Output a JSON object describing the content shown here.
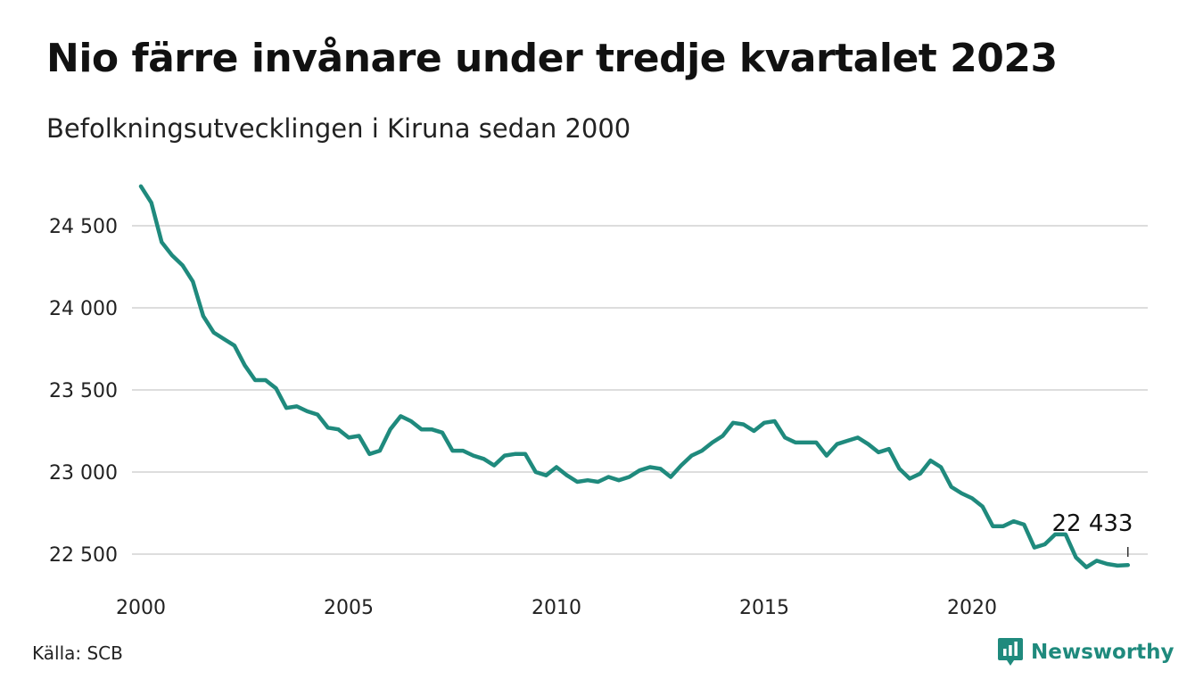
{
  "header": {
    "title": "Nio färre invånare under tredje kvartalet 2023",
    "subtitle": "Befolkningsutvecklingen i Kiruna sedan 2000"
  },
  "footer": {
    "source": "Källa: SCB",
    "brand": "Newsworthy"
  },
  "colors": {
    "line": "#1f8a7d",
    "grid": "#dddddd",
    "brand": "#1f8a7d"
  },
  "icons": {
    "brand_logo": "chart-bubble-icon"
  },
  "chart_data": {
    "type": "line",
    "title": "Nio färre invånare under tredje kvartalet 2023",
    "subtitle": "Befolkningsutvecklingen i Kiruna sedan 2000",
    "xlabel": "",
    "ylabel": "",
    "xlim": [
      2000,
      2024.5
    ],
    "ylim": [
      22400,
      24800
    ],
    "x_ticks": [
      2000,
      2005,
      2010,
      2015,
      2020
    ],
    "x_tick_labels": [
      "2000",
      "2005",
      "2010",
      "2015",
      "2020"
    ],
    "y_ticks": [
      22500,
      23000,
      23500,
      24000,
      24500
    ],
    "y_tick_labels": [
      "22 500",
      "23 000",
      "23 500",
      "24 000",
      "24 500"
    ],
    "grid": true,
    "annotation": {
      "label": "22 433",
      "x": 2023.75,
      "y": 22433
    },
    "series": [
      {
        "x": [
          2000.0,
          2000.25,
          2000.5,
          2000.75,
          2001.0,
          2001.25,
          2001.5,
          2001.75,
          2002.0,
          2002.25,
          2002.5,
          2002.75,
          2003.0,
          2003.25,
          2003.5,
          2003.75,
          2004.0,
          2004.25,
          2004.5,
          2004.75,
          2005.0,
          2005.25,
          2005.5,
          2005.75,
          2006.0,
          2006.25,
          2006.5,
          2006.75,
          2007.0,
          2007.25,
          2007.5,
          2007.75,
          2008.0,
          2008.25,
          2008.5,
          2008.75,
          2009.0,
          2009.25,
          2009.5,
          2009.75,
          2010.0,
          2010.25,
          2010.5,
          2010.75,
          2011.0,
          2011.25,
          2011.5,
          2011.75,
          2012.0,
          2012.25,
          2012.5,
          2012.75,
          2013.0,
          2013.25,
          2013.5,
          2013.75,
          2014.0,
          2014.25,
          2014.5,
          2014.75,
          2015.0,
          2015.25,
          2015.5,
          2015.75,
          2016.0,
          2016.25,
          2016.5,
          2016.75,
          2017.0,
          2017.25,
          2017.5,
          2017.75,
          2018.0,
          2018.25,
          2018.5,
          2018.75,
          2019.0,
          2019.25,
          2019.5,
          2019.75,
          2020.0,
          2020.25,
          2020.5,
          2020.75,
          2021.0,
          2021.25,
          2021.5,
          2021.75,
          2022.0,
          2022.25,
          2022.5,
          2022.75,
          2023.0,
          2023.25,
          2023.5,
          2023.75
        ],
        "values": [
          24740,
          24640,
          24400,
          24320,
          24260,
          24160,
          23950,
          23850,
          23810,
          23770,
          23650,
          23560,
          23560,
          23510,
          23390,
          23400,
          23370,
          23350,
          23270,
          23260,
          23210,
          23220,
          23110,
          23130,
          23260,
          23340,
          23310,
          23260,
          23260,
          23240,
          23130,
          23130,
          23100,
          23080,
          23040,
          23100,
          23110,
          23110,
          23000,
          22980,
          23030,
          22980,
          22940,
          22950,
          22940,
          22970,
          22950,
          22970,
          23010,
          23030,
          23020,
          22970,
          23040,
          23100,
          23130,
          23180,
          23220,
          23300,
          23290,
          23250,
          23300,
          23310,
          23210,
          23180,
          23180,
          23180,
          23100,
          23170,
          23190,
          23210,
          23170,
          23120,
          23140,
          23020,
          22960,
          22990,
          23070,
          23030,
          22910,
          22870,
          22840,
          22790,
          22670,
          22670,
          22700,
          22680,
          22540,
          22560,
          22620,
          22620,
          22480,
          22420,
          22460,
          22440,
          22430,
          22433
        ]
      }
    ]
  }
}
